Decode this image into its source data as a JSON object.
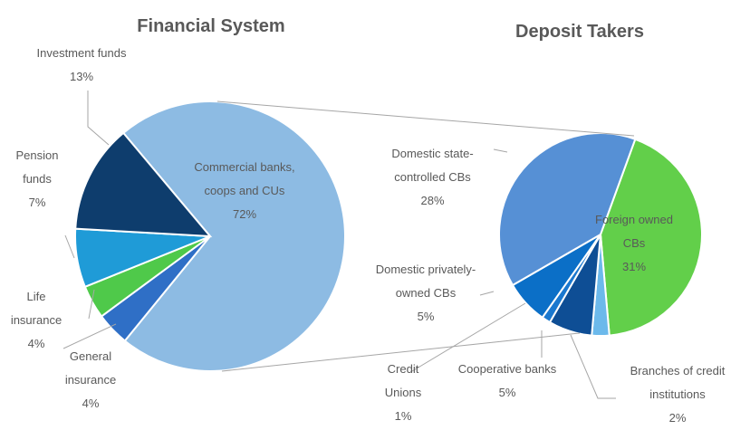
{
  "chart_data": [
    {
      "type": "pie",
      "title": "Financial System",
      "categories": [
        "Commercial banks, coops and CUs",
        "General insurance",
        "Life insurance",
        "Pension funds",
        "Investment funds"
      ],
      "values": [
        72,
        4,
        4,
        7,
        13
      ],
      "value_labels": [
        "72%",
        "4%",
        "4%",
        "7%",
        "13%"
      ],
      "colors": [
        "#8dbbe3",
        "#2f6fc6",
        "#4fc94a",
        "#1f9bd7",
        "#0e3d6d"
      ]
    },
    {
      "type": "pie",
      "title": "Deposit Takers",
      "categories": [
        "Foreign owned CBs",
        "Branches of credit institutions",
        "Cooperative banks",
        "Credit Unions",
        "Domestic privately-owned CBs",
        "Domestic state-controlled CBs"
      ],
      "values": [
        31,
        2,
        5,
        1,
        5,
        28
      ],
      "value_labels": [
        "31%",
        "2%",
        "5%",
        "1%",
        "5%",
        "28%"
      ],
      "colors": [
        "#62cf4a",
        "#6cb9eb",
        "#0e4e95",
        "#1a78cf",
        "#0b6fc7",
        "#5690d5"
      ]
    }
  ]
}
